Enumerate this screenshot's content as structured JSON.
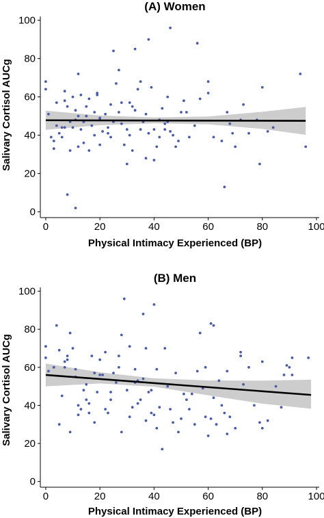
{
  "chart_data": [
    {
      "type": "scatter",
      "title": "(A) Women",
      "xlabel": "Physical Intimacy Experienced (BP)",
      "ylabel": "Salivary Cortisol AUCg",
      "xlim": [
        -2,
        101
      ],
      "ylim": [
        -3,
        102
      ],
      "xticks": [
        0,
        20,
        40,
        60,
        80,
        100
      ],
      "yticks": [
        0,
        20,
        40,
        60,
        80,
        100
      ],
      "x_tick_labels": [
        "0",
        "20",
        "40",
        "60",
        "80",
        "100"
      ],
      "y_tick_labels": [
        "0",
        "20",
        "40",
        "60",
        "80",
        "100"
      ],
      "grid": false,
      "point_color": "#4a5ba8",
      "fit_color": "#000000",
      "band_color": "#c8c8c8",
      "points": [
        [
          0,
          68
        ],
        [
          0,
          64
        ],
        [
          1,
          51
        ],
        [
          2,
          39
        ],
        [
          3,
          37
        ],
        [
          3,
          33
        ],
        [
          4,
          45
        ],
        [
          4,
          57
        ],
        [
          5,
          41
        ],
        [
          6,
          44
        ],
        [
          6,
          39
        ],
        [
          7,
          58
        ],
        [
          7,
          63
        ],
        [
          7,
          44
        ],
        [
          8,
          55
        ],
        [
          8,
          9
        ],
        [
          9,
          32
        ],
        [
          9,
          47
        ],
        [
          10,
          60
        ],
        [
          10,
          44
        ],
        [
          11,
          53
        ],
        [
          11,
          48
        ],
        [
          11,
          2
        ],
        [
          12,
          34
        ],
        [
          12,
          50
        ],
        [
          12,
          72
        ],
        [
          13,
          43
        ],
        [
          13,
          61
        ],
        [
          14,
          36
        ],
        [
          14,
          47
        ],
        [
          15,
          55
        ],
        [
          15,
          50
        ],
        [
          16,
          32
        ],
        [
          16,
          59
        ],
        [
          17,
          45
        ],
        [
          18,
          40
        ],
        [
          18,
          52
        ],
        [
          19,
          62
        ],
        [
          19,
          61
        ],
        [
          20,
          35
        ],
        [
          20,
          49
        ],
        [
          20,
          48
        ],
        [
          21,
          42
        ],
        [
          22,
          51
        ],
        [
          23,
          41
        ],
        [
          23,
          44
        ],
        [
          24,
          56
        ],
        [
          24,
          39
        ],
        [
          25,
          47
        ],
        [
          25,
          84
        ],
        [
          26,
          67
        ],
        [
          27,
          74
        ],
        [
          27,
          52
        ],
        [
          28,
          57
        ],
        [
          28,
          46
        ],
        [
          29,
          35
        ],
        [
          30,
          25
        ],
        [
          30,
          43
        ],
        [
          31,
          57
        ],
        [
          31,
          40
        ],
        [
          32,
          32
        ],
        [
          32,
          55
        ],
        [
          33,
          53
        ],
        [
          33,
          85
        ],
        [
          34,
          64
        ],
        [
          35,
          43
        ],
        [
          35,
          68
        ],
        [
          36,
          47
        ],
        [
          37,
          51
        ],
        [
          37,
          28
        ],
        [
          38,
          90
        ],
        [
          38,
          41
        ],
        [
          39,
          65
        ],
        [
          40,
          27
        ],
        [
          40,
          43
        ],
        [
          41,
          34
        ],
        [
          42,
          39
        ],
        [
          42,
          48
        ],
        [
          43,
          54
        ],
        [
          44,
          46
        ],
        [
          44,
          43
        ],
        [
          45,
          47
        ],
        [
          45,
          60
        ],
        [
          46,
          96
        ],
        [
          46,
          42
        ],
        [
          47,
          40
        ],
        [
          48,
          34
        ],
        [
          49,
          37
        ],
        [
          50,
          52
        ],
        [
          51,
          58
        ],
        [
          52,
          52
        ],
        [
          53,
          39
        ],
        [
          55,
          45
        ],
        [
          56,
          88
        ],
        [
          57,
          59
        ],
        [
          60,
          68
        ],
        [
          60,
          62
        ],
        [
          62,
          39
        ],
        [
          65,
          37
        ],
        [
          66,
          13
        ],
        [
          67,
          52
        ],
        [
          68,
          46
        ],
        [
          69,
          41
        ],
        [
          70,
          34
        ],
        [
          72,
          48
        ],
        [
          73,
          56
        ],
        [
          75,
          41
        ],
        [
          78,
          48
        ],
        [
          79,
          25
        ],
        [
          80,
          65
        ],
        [
          82,
          42
        ],
        [
          84,
          44
        ],
        [
          94,
          72
        ],
        [
          96,
          34
        ]
      ],
      "fit": {
        "x": [
          0,
          96
        ],
        "y": [
          47.8,
          47.5
        ]
      },
      "band": {
        "x": [
          0,
          20,
          40,
          60,
          80,
          96
        ],
        "lower": [
          42.8,
          45.2,
          46.2,
          45.7,
          43.3,
          40.2
        ],
        "upper": [
          52.8,
          50.3,
          49.3,
          49.8,
          52.2,
          54.8
        ]
      }
    },
    {
      "type": "scatter",
      "title": "(B) Men",
      "xlabel": "Physical Intimacy Experienced (BP)",
      "ylabel": "Salivary Cortisol AUCg",
      "xlim": [
        -2,
        101
      ],
      "ylim": [
        -3,
        102
      ],
      "xticks": [
        0,
        20,
        40,
        60,
        80,
        100
      ],
      "yticks": [
        0,
        20,
        40,
        60,
        80,
        100
      ],
      "x_tick_labels": [
        "0",
        "20",
        "40",
        "60",
        "80",
        "100"
      ],
      "y_tick_labels": [
        "0",
        "20",
        "40",
        "60",
        "80",
        "100"
      ],
      "grid": false,
      "point_color": "#4a5ba8",
      "fit_color": "#000000",
      "band_color": "#c8c8c8",
      "points": [
        [
          0,
          71
        ],
        [
          0,
          65
        ],
        [
          1,
          58
        ],
        [
          3,
          60
        ],
        [
          4,
          82
        ],
        [
          5,
          30
        ],
        [
          5,
          69
        ],
        [
          6,
          45
        ],
        [
          7,
          60
        ],
        [
          7,
          63
        ],
        [
          8,
          66
        ],
        [
          8,
          64
        ],
        [
          9,
          26
        ],
        [
          9,
          78
        ],
        [
          10,
          70
        ],
        [
          11,
          55
        ],
        [
          11,
          59
        ],
        [
          12,
          35
        ],
        [
          12,
          40
        ],
        [
          13,
          38
        ],
        [
          14,
          48
        ],
        [
          15,
          51
        ],
        [
          15,
          43
        ],
        [
          16,
          36
        ],
        [
          16,
          41
        ],
        [
          17,
          66
        ],
        [
          18,
          57
        ],
        [
          18,
          31
        ],
        [
          19,
          47
        ],
        [
          20,
          56
        ],
        [
          20,
          64
        ],
        [
          21,
          56
        ],
        [
          22,
          68
        ],
        [
          22,
          38
        ],
        [
          23,
          36
        ],
        [
          24,
          47
        ],
        [
          24,
          43
        ],
        [
          25,
          57
        ],
        [
          26,
          52
        ],
        [
          27,
          60
        ],
        [
          27,
          66
        ],
        [
          28,
          26
        ],
        [
          28,
          77
        ],
        [
          29,
          96
        ],
        [
          30,
          48
        ],
        [
          31,
          34
        ],
        [
          31,
          71
        ],
        [
          32,
          39
        ],
        [
          33,
          59
        ],
        [
          33,
          52
        ],
        [
          34,
          41
        ],
        [
          34,
          53
        ],
        [
          35,
          43
        ],
        [
          36,
          54
        ],
        [
          36,
          88
        ],
        [
          37,
          32
        ],
        [
          37,
          70
        ],
        [
          38,
          47
        ],
        [
          39,
          36
        ],
        [
          39,
          48
        ],
        [
          40,
          93
        ],
        [
          40,
          35
        ],
        [
          41,
          59
        ],
        [
          41,
          28
        ],
        [
          42,
          39
        ],
        [
          43,
          17
        ],
        [
          44,
          70
        ],
        [
          45,
          50
        ],
        [
          46,
          38
        ],
        [
          47,
          31
        ],
        [
          48,
          57
        ],
        [
          49,
          26
        ],
        [
          50,
          33
        ],
        [
          51,
          46
        ],
        [
          52,
          43
        ],
        [
          53,
          38
        ],
        [
          54,
          46
        ],
        [
          55,
          30
        ],
        [
          56,
          58
        ],
        [
          57,
          78
        ],
        [
          58,
          49
        ],
        [
          59,
          34
        ],
        [
          59,
          60
        ],
        [
          60,
          24
        ],
        [
          61,
          33
        ],
        [
          61,
          83
        ],
        [
          62,
          82
        ],
        [
          62,
          44
        ],
        [
          63,
          30
        ],
        [
          64,
          53
        ],
        [
          65,
          40
        ],
        [
          66,
          36
        ],
        [
          67,
          25
        ],
        [
          67,
          58
        ],
        [
          68,
          34
        ],
        [
          70,
          28
        ],
        [
          72,
          68
        ],
        [
          72,
          66
        ],
        [
          73,
          51
        ],
        [
          75,
          60
        ],
        [
          77,
          40
        ],
        [
          79,
          31
        ],
        [
          80,
          63
        ],
        [
          80,
          28
        ],
        [
          82,
          32
        ],
        [
          85,
          50
        ],
        [
          87,
          39
        ],
        [
          88,
          56
        ],
        [
          89,
          61
        ],
        [
          90,
          60
        ],
        [
          91,
          56
        ],
        [
          91,
          65
        ],
        [
          97,
          65
        ]
      ],
      "fit": {
        "x": [
          0,
          98
        ],
        "y": [
          56.0,
          45.5
        ]
      },
      "band": {
        "x": [
          0,
          20,
          40,
          60,
          80,
          98
        ],
        "lower": [
          50.0,
          51.5,
          49.8,
          45.3,
          40.9,
          38.2
        ],
        "upper": [
          62.0,
          57.4,
          54.2,
          53.1,
          53.0,
          53.5
        ]
      }
    }
  ]
}
